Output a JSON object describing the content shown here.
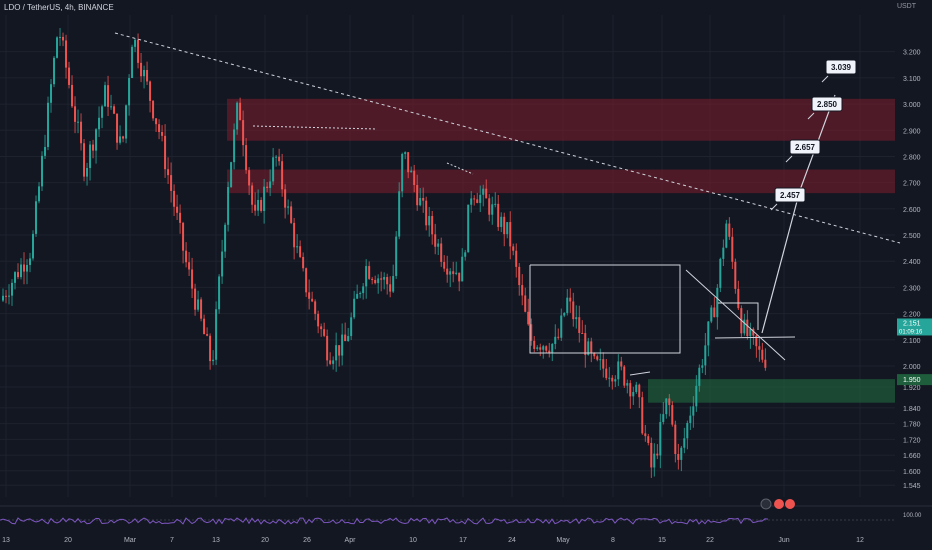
{
  "header": {
    "symbol": "LDO / TetherUS, 4h, BINANCE",
    "currency": "USDT"
  },
  "colors": {
    "bg": "#131722",
    "up": "#26a69a",
    "down": "#ef5350",
    "grid": "#1e222d",
    "resistance": "#7f1d2d",
    "support": "#1f5e3a",
    "axis_text": "#b2b5be"
  },
  "chart_data": {
    "type": "candlestick",
    "y_range": [
      1.5,
      3.34
    ],
    "y_ticks": [
      3.2,
      3.1,
      3.0,
      2.9,
      2.8,
      2.7,
      2.6,
      2.5,
      2.4,
      2.3,
      2.2,
      2.1,
      2.0,
      1.92,
      1.84,
      1.78,
      1.72,
      1.66,
      1.6,
      1.545
    ],
    "x_labels": [
      "13",
      "20",
      "Mar",
      "7",
      "13",
      "20",
      "26",
      "Apr",
      "10",
      "17",
      "24",
      "May",
      "8",
      "15",
      "22",
      "Jun",
      "12"
    ],
    "price_path": [
      [
        0,
        2.25
      ],
      [
        0.03,
        2.45
      ],
      [
        0.055,
        3.3
      ],
      [
        0.08,
        2.75
      ],
      [
        0.1,
        3.05
      ],
      [
        0.115,
        2.82
      ],
      [
        0.125,
        3.27
      ],
      [
        0.15,
        2.9
      ],
      [
        0.175,
        2.4
      ],
      [
        0.2,
        2.0
      ],
      [
        0.215,
        2.7
      ],
      [
        0.225,
        3.01
      ],
      [
        0.24,
        2.55
      ],
      [
        0.26,
        2.8
      ],
      [
        0.285,
        2.35
      ],
      [
        0.31,
        2.05
      ],
      [
        0.325,
        2.08
      ],
      [
        0.345,
        2.38
      ],
      [
        0.37,
        2.3
      ],
      [
        0.38,
        2.82
      ],
      [
        0.4,
        2.58
      ],
      [
        0.42,
        2.4
      ],
      [
        0.435,
        2.35
      ],
      [
        0.445,
        2.68
      ],
      [
        0.46,
        2.62
      ],
      [
        0.48,
        2.5
      ],
      [
        0.5,
        2.1
      ],
      [
        0.525,
        2.08
      ],
      [
        0.535,
        2.25
      ],
      [
        0.56,
        2.0
      ],
      [
        0.585,
        1.98
      ],
      [
        0.6,
        1.9
      ],
      [
        0.615,
        1.6
      ],
      [
        0.63,
        1.88
      ],
      [
        0.64,
        1.62
      ],
      [
        0.655,
        1.9
      ],
      [
        0.675,
        2.25
      ],
      [
        0.685,
        2.55
      ],
      [
        0.7,
        2.15
      ],
      [
        0.715,
        2.05
      ],
      [
        0.735,
        1.99
      ],
      [
        0.755,
        2.03
      ],
      [
        0.765,
        2.15
      ]
    ],
    "last_price": "2.151",
    "countdown": "01:09:16",
    "support_label": "1.950",
    "resistance_zones": [
      [
        2.86,
        3.02
      ],
      [
        2.66,
        2.75
      ]
    ],
    "support_zone": [
      1.86,
      1.95
    ],
    "targets": [
      "2.457",
      "2.657",
      "2.850",
      "3.039"
    ],
    "indicator_label": "100.00"
  }
}
